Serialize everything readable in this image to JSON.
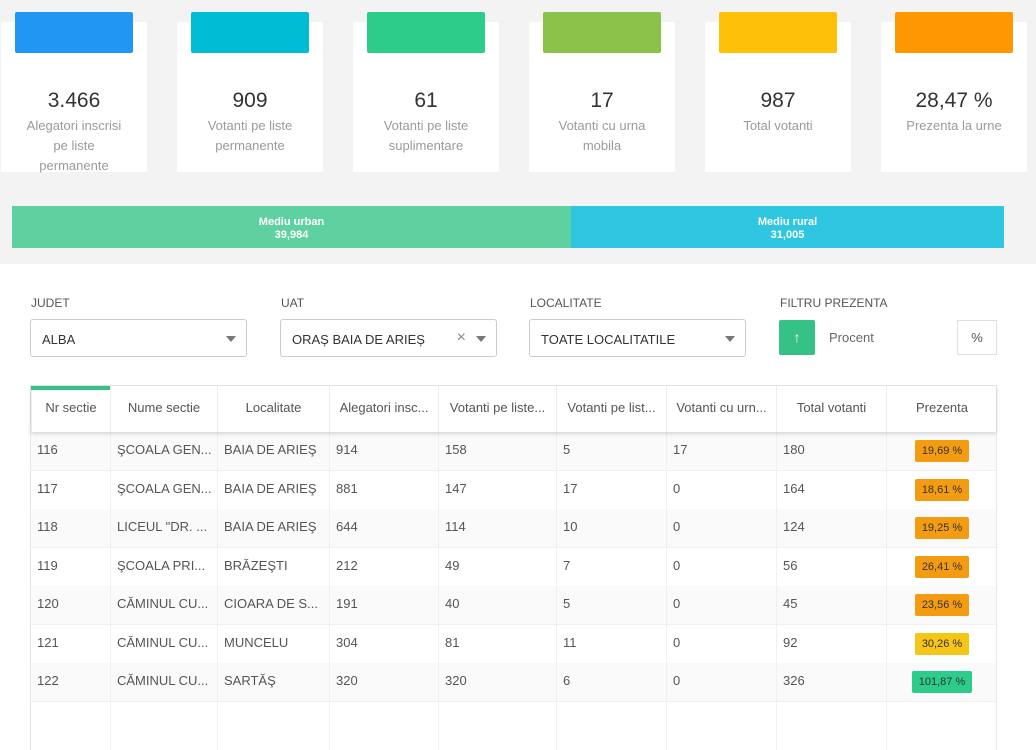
{
  "cards": [
    {
      "value": "3.466",
      "label": "Alegatori inscrisi pe liste permanente",
      "color": "#2196f3"
    },
    {
      "value": "909",
      "label": "Votanti pe liste permanente",
      "color": "#00bcd4"
    },
    {
      "value": "61",
      "label": "Votanti pe liste suplimentare",
      "color": "#2ecc8a"
    },
    {
      "value": "17",
      "label": "Votanti cu urna mobila",
      "color": "#8bc34a"
    },
    {
      "value": "987",
      "label": "Total votanti",
      "color": "#ffc107"
    },
    {
      "value": "28,47 %",
      "label": "Prezenta la urne",
      "color": "#ff9800"
    }
  ],
  "split": {
    "urban": {
      "label": "Mediu urban",
      "value": "39,984"
    },
    "rural": {
      "label": "Mediu rural",
      "value": "31,005"
    }
  },
  "filters": {
    "judet": {
      "label": "JUDET",
      "value": "ALBA"
    },
    "uat": {
      "label": "UAT",
      "value": "ORAȘ BAIA DE ARIEȘ"
    },
    "localitate": {
      "label": "LOCALITATE",
      "value": "TOATE LOCALITATILE"
    },
    "prezenta": {
      "label": "FILTRU PREZENTA",
      "placeholder": "Procent",
      "unit": "%",
      "button": "↑"
    }
  },
  "table": {
    "headers": [
      "Nr sectie",
      "Nume sectie",
      "Localitate",
      "Alegatori insc...",
      "Votanti pe liste...",
      "Votanti pe list...",
      "Votanti cu urn...",
      "Total votanti",
      "Prezenta"
    ],
    "rows": [
      {
        "nr": "116",
        "nume": "ŞCOALA GEN...",
        "loc": "BAIA DE ARIEŞ",
        "aleg": "914",
        "vlp": "158",
        "vls": "5",
        "vum": "17",
        "total": "180",
        "prez": "19,69 %",
        "prez_color": "#f39c12"
      },
      {
        "nr": "117",
        "nume": "ŞCOALA GEN...",
        "loc": "BAIA DE ARIEŞ",
        "aleg": "881",
        "vlp": "147",
        "vls": "17",
        "vum": "0",
        "total": "164",
        "prez": "18,61 %",
        "prez_color": "#f39c12"
      },
      {
        "nr": "118",
        "nume": "LICEUL \"DR. ...",
        "loc": "BAIA DE ARIEŞ",
        "aleg": "644",
        "vlp": "114",
        "vls": "10",
        "vum": "0",
        "total": "124",
        "prez": "19,25 %",
        "prez_color": "#f39c12"
      },
      {
        "nr": "119",
        "nume": "ŞCOALA PRI...",
        "loc": "BRĂZEŞTI",
        "aleg": "212",
        "vlp": "49",
        "vls": "7",
        "vum": "0",
        "total": "56",
        "prez": "26,41 %",
        "prez_color": "#f39c12"
      },
      {
        "nr": "120",
        "nume": "CĂMINUL CU...",
        "loc": "CIOARA DE S...",
        "aleg": "191",
        "vlp": "40",
        "vls": "5",
        "vum": "0",
        "total": "45",
        "prez": "23,56 %",
        "prez_color": "#f39c12"
      },
      {
        "nr": "121",
        "nume": "CĂMINUL CU...",
        "loc": "MUNCELU",
        "aleg": "304",
        "vlp": "81",
        "vls": "11",
        "vum": "0",
        "total": "92",
        "prez": "30,26 %",
        "prez_color": "#f5c518"
      },
      {
        "nr": "122",
        "nume": "CĂMINUL CU...",
        "loc": "SARTĂŞ",
        "aleg": "320",
        "vlp": "320",
        "vls": "6",
        "vum": "0",
        "total": "326",
        "prez": "101,87 %",
        "prez_color": "#2ecc8a"
      }
    ]
  }
}
